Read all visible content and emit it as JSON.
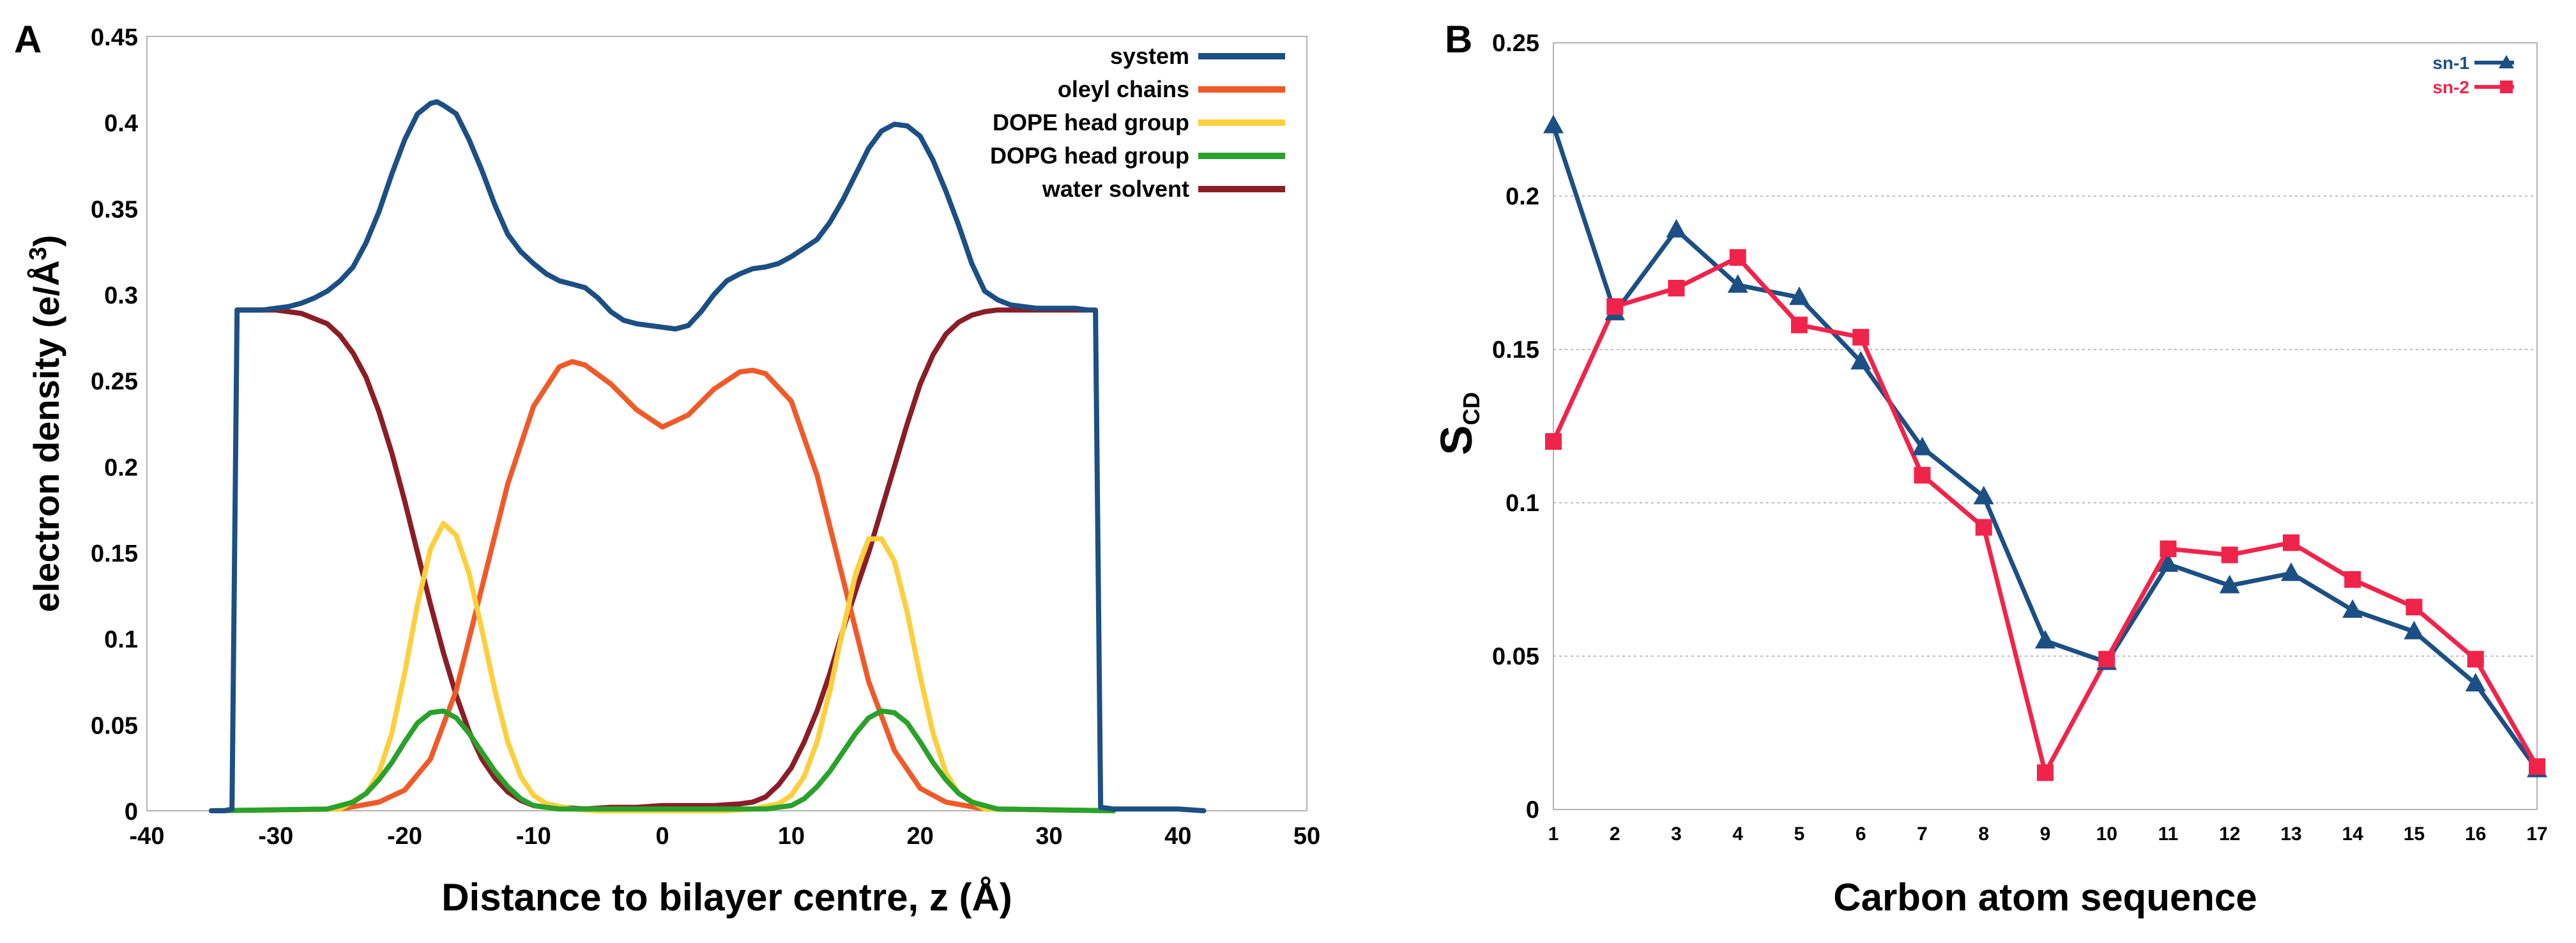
{
  "chart_data": [
    {
      "panel": "A",
      "type": "line",
      "title": "",
      "xlabel": "Distance to bilayer centre, z (Å)",
      "ylabel_main": "electron density (e/Å",
      "ylabel_sup": "3",
      "ylabel_end": ")",
      "xlim": [
        -40,
        50
      ],
      "ylim": [
        0,
        0.45
      ],
      "xticks": [
        -40,
        -30,
        -20,
        -10,
        0,
        10,
        20,
        30,
        40,
        50
      ],
      "xtick_labels": [
        "-40",
        "-30",
        "-20",
        "-10",
        "0",
        "10",
        "20",
        "30",
        "40",
        "50"
      ],
      "yticks": [
        0,
        0.05,
        0.1,
        0.15,
        0.2,
        0.25,
        0.3,
        0.35,
        0.4,
        0.45
      ],
      "ytick_labels": [
        "0",
        "0.05",
        "0.1",
        "0.15",
        "0.2",
        "0.25",
        "0.3",
        "0.35",
        "0.4",
        "0.45"
      ],
      "legend_position": "top-right",
      "series": [
        {
          "name": "system",
          "color": "#1c4f84",
          "x": [
            -35,
            -34,
            -33.4,
            -33,
            -32,
            -31,
            -30,
            -29,
            -28,
            -27,
            -26,
            -25,
            -24,
            -23,
            -22,
            -21,
            -20,
            -19,
            -18,
            -17.5,
            -17,
            -16,
            -15,
            -14,
            -13,
            -12,
            -11,
            -10,
            -9,
            -8,
            -7,
            -6,
            -5,
            -4,
            -3,
            -2,
            -1,
            0,
            1,
            2,
            3,
            4,
            5,
            6,
            7,
            8,
            9,
            10,
            11,
            12,
            13,
            14,
            15,
            16,
            17,
            18,
            19,
            20,
            21,
            22,
            23,
            24,
            25,
            26,
            27,
            28,
            29,
            30,
            31,
            32,
            33,
            33.6,
            34,
            35,
            36,
            38,
            40,
            42
          ],
          "y": [
            0,
            0,
            0.001,
            0.291,
            0.291,
            0.291,
            0.292,
            0.293,
            0.295,
            0.298,
            0.302,
            0.308,
            0.316,
            0.33,
            0.348,
            0.37,
            0.39,
            0.405,
            0.411,
            0.412,
            0.41,
            0.405,
            0.39,
            0.372,
            0.352,
            0.335,
            0.325,
            0.318,
            0.312,
            0.308,
            0.306,
            0.304,
            0.298,
            0.29,
            0.285,
            0.283,
            0.282,
            0.281,
            0.28,
            0.282,
            0.29,
            0.3,
            0.308,
            0.312,
            0.315,
            0.316,
            0.318,
            0.322,
            0.327,
            0.332,
            0.342,
            0.355,
            0.37,
            0.385,
            0.395,
            0.399,
            0.398,
            0.392,
            0.378,
            0.36,
            0.34,
            0.318,
            0.302,
            0.297,
            0.294,
            0.293,
            0.292,
            0.292,
            0.292,
            0.292,
            0.291,
            0.291,
            0.002,
            0.001,
            0.001,
            0.001,
            0.001,
            0
          ]
        },
        {
          "name": "oleyl chains",
          "color": "#f05a28",
          "x": [
            -35,
            -25,
            -22,
            -20,
            -18,
            -16,
            -14,
            -12,
            -10,
            -8,
            -7,
            -6,
            -4,
            -2,
            0,
            2,
            4,
            6,
            7,
            8,
            10,
            12,
            14,
            16,
            18,
            20,
            22,
            25,
            35
          ],
          "y": [
            0,
            0.001,
            0.005,
            0.012,
            0.03,
            0.07,
            0.13,
            0.19,
            0.235,
            0.258,
            0.261,
            0.259,
            0.248,
            0.233,
            0.223,
            0.23,
            0.245,
            0.255,
            0.256,
            0.254,
            0.238,
            0.195,
            0.135,
            0.075,
            0.035,
            0.013,
            0.005,
            0.001,
            0
          ]
        },
        {
          "name": "DOPE head group",
          "color": "#fdcf3c",
          "x": [
            -35,
            -25,
            -23,
            -22,
            -21,
            -20,
            -19,
            -18,
            -17,
            -16,
            -15,
            -14,
            -13,
            -12,
            -11,
            -10,
            -9,
            -7,
            -5,
            5,
            7,
            9,
            10,
            11,
            12,
            13,
            14,
            15,
            16,
            17,
            18,
            19,
            20,
            21,
            22,
            23,
            25,
            35
          ],
          "y": [
            0,
            0.001,
            0.01,
            0.022,
            0.045,
            0.08,
            0.12,
            0.152,
            0.167,
            0.16,
            0.138,
            0.105,
            0.07,
            0.04,
            0.02,
            0.009,
            0.004,
            0.001,
            0,
            0,
            0.001,
            0.004,
            0.009,
            0.02,
            0.04,
            0.07,
            0.105,
            0.138,
            0.158,
            0.158,
            0.145,
            0.115,
            0.078,
            0.045,
            0.022,
            0.01,
            0.001,
            0
          ]
        },
        {
          "name": "DOPG head group",
          "color": "#2aa12b",
          "x": [
            -35,
            -26,
            -24,
            -23,
            -22,
            -21,
            -20,
            -19,
            -18,
            -17,
            -16,
            -15,
            -14,
            -13,
            -12,
            -11,
            -10,
            -8,
            8,
            10,
            11,
            12,
            13,
            14,
            15,
            16,
            17,
            18,
            19,
            20,
            21,
            22,
            23,
            24,
            26,
            35
          ],
          "y": [
            0,
            0.001,
            0.005,
            0.01,
            0.018,
            0.028,
            0.04,
            0.051,
            0.057,
            0.058,
            0.054,
            0.045,
            0.034,
            0.023,
            0.014,
            0.007,
            0.003,
            0.001,
            0.001,
            0.003,
            0.007,
            0.014,
            0.023,
            0.034,
            0.045,
            0.054,
            0.058,
            0.057,
            0.051,
            0.04,
            0.028,
            0.018,
            0.01,
            0.005,
            0.001,
            0
          ]
        },
        {
          "name": "water solvent",
          "color": "#8b1d27",
          "x": [
            -33,
            -30,
            -28,
            -26,
            -25,
            -24,
            -23,
            -22,
            -21,
            -20,
            -19,
            -18,
            -17,
            -16,
            -15,
            -14,
            -13,
            -12,
            -11,
            -10,
            -9,
            -8,
            -6,
            -4,
            -2,
            0,
            2,
            4,
            6,
            7,
            8,
            9,
            10,
            11,
            12,
            13,
            14,
            15,
            16,
            17,
            18,
            19,
            20,
            21,
            22,
            23,
            24,
            25,
            26,
            28,
            30,
            33
          ],
          "y": [
            0.291,
            0.291,
            0.289,
            0.283,
            0.276,
            0.266,
            0.252,
            0.232,
            0.208,
            0.18,
            0.15,
            0.12,
            0.092,
            0.067,
            0.046,
            0.03,
            0.019,
            0.011,
            0.006,
            0.003,
            0.002,
            0.002,
            0.001,
            0.002,
            0.002,
            0.003,
            0.003,
            0.003,
            0.004,
            0.005,
            0.008,
            0.015,
            0.025,
            0.04,
            0.058,
            0.08,
            0.105,
            0.128,
            0.15,
            0.175,
            0.2,
            0.225,
            0.248,
            0.265,
            0.277,
            0.284,
            0.288,
            0.29,
            0.291,
            0.291,
            0.291,
            0.291
          ]
        }
      ]
    },
    {
      "panel": "B",
      "type": "line",
      "title": "",
      "xlabel": "Carbon atom sequence",
      "ylabel_main": "S",
      "ylabel_sub": "CD",
      "xlim": [
        1,
        17
      ],
      "ylim": [
        0,
        0.25
      ],
      "categories": [
        1,
        2,
        3,
        4,
        5,
        6,
        7,
        8,
        9,
        10,
        11,
        12,
        13,
        14,
        15,
        16,
        17
      ],
      "category_labels": [
        "1",
        "2",
        "3",
        "4",
        "5",
        "6",
        "7",
        "8",
        "9",
        "10",
        "11",
        "12",
        "13",
        "14",
        "15",
        "16",
        "17"
      ],
      "yticks": [
        0,
        0.05,
        0.1,
        0.15,
        0.2,
        0.25
      ],
      "ytick_labels": [
        "0",
        "0.05",
        "0.1",
        "0.15",
        "0.2",
        "0.25"
      ],
      "grid": true,
      "legend_position": "top-right",
      "series": [
        {
          "name": "sn-1",
          "color": "#1c4f84",
          "marker": "triangle",
          "values": [
            0.223,
            0.162,
            0.189,
            0.171,
            0.167,
            0.146,
            0.118,
            0.102,
            0.055,
            0.048,
            0.08,
            0.073,
            0.077,
            0.065,
            0.058,
            0.041,
            0.013
          ]
        },
        {
          "name": "sn-2",
          "color": "#f0244b",
          "marker": "square",
          "values": [
            0.12,
            0.164,
            0.17,
            0.18,
            0.158,
            0.154,
            0.109,
            0.092,
            0.012,
            0.049,
            0.085,
            0.083,
            0.087,
            0.075,
            0.066,
            0.049,
            0.014
          ]
        }
      ]
    }
  ],
  "panel_labels": [
    "A",
    "B"
  ]
}
